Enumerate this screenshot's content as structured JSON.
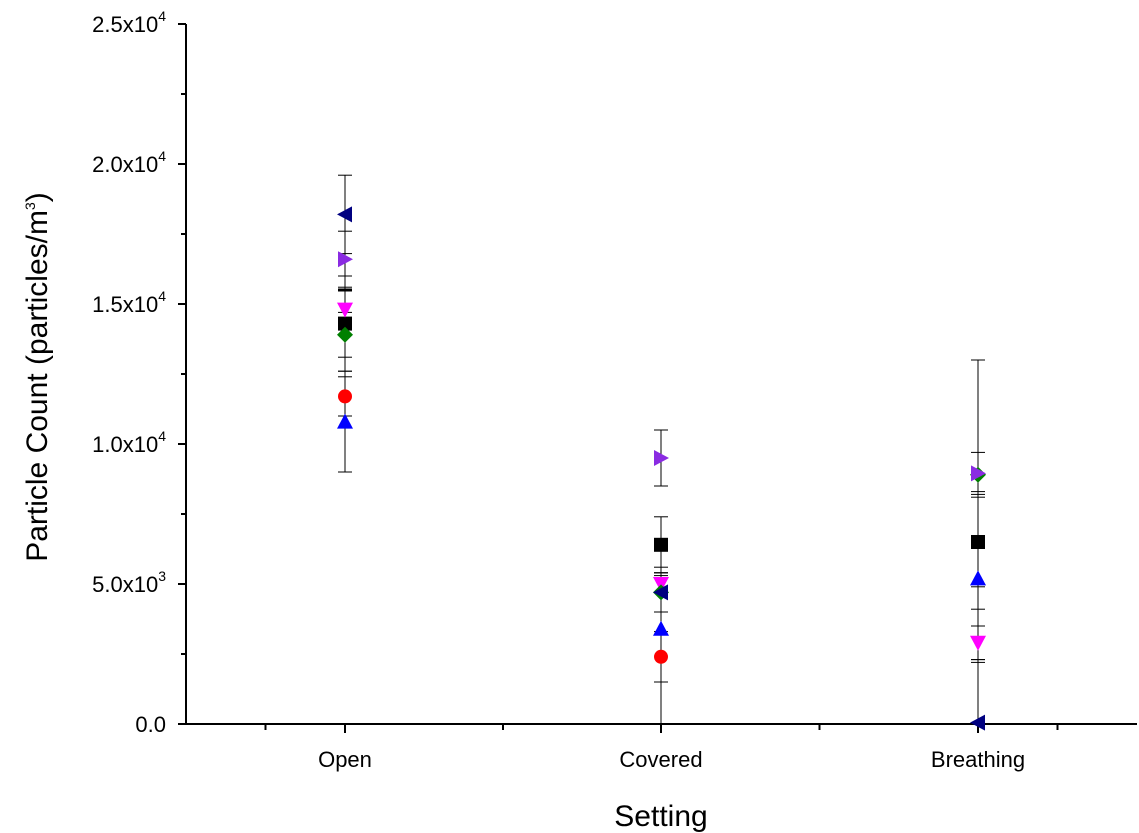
{
  "chart_data": {
    "type": "scatter",
    "xlabel": "Setting",
    "ylabel": "Particle Count (particles/m",
    "ylabel_sup": "3",
    "ylabel_close": ")",
    "categories": [
      "Open",
      "Covered",
      "Breathing"
    ],
    "ylim": [
      0,
      25000
    ],
    "y_ticks": [
      {
        "value": 0,
        "mant": "0.0",
        "exp": ""
      },
      {
        "value": 5000,
        "mant": "5.0x10",
        "exp": "3"
      },
      {
        "value": 10000,
        "mant": "1.0x10",
        "exp": "4"
      },
      {
        "value": 15000,
        "mant": "1.5x10",
        "exp": "4"
      },
      {
        "value": 20000,
        "mant": "2.0x10",
        "exp": "4"
      },
      {
        "value": 25000,
        "mant": "2.5x10",
        "exp": "4"
      }
    ],
    "grid": false,
    "series": [
      {
        "marker": "square",
        "color": "#000000",
        "points": [
          {
            "cat": 0,
            "y": 14300,
            "err_low": 12600,
            "err_high": 16000
          },
          {
            "cat": 1,
            "y": 6400,
            "err_low": 5400,
            "err_high": 7400
          },
          {
            "cat": 2,
            "y": 6500,
            "err_low": 4100,
            "err_high": 8300
          }
        ]
      },
      {
        "marker": "circle",
        "color": "#ff0000",
        "points": [
          {
            "cat": 0,
            "y": 11700,
            "err_low": 11000,
            "err_high": 12400
          },
          {
            "cat": 1,
            "y": 2400,
            "err_low": 1500,
            "err_high": 3300
          }
        ]
      },
      {
        "marker": "triangle-up",
        "color": "#0000ff",
        "points": [
          {
            "cat": 0,
            "y": 10800,
            "err_low": 9000,
            "err_high": 12600
          },
          {
            "cat": 1,
            "y": 3400,
            "err_low": 0,
            "err_high": 5600
          },
          {
            "cat": 2,
            "y": 5200,
            "err_low": 2200,
            "err_high": 8200
          }
        ]
      },
      {
        "marker": "triangle-down",
        "color": "#ff00ff",
        "points": [
          {
            "cat": 0,
            "y": 14800,
            "err_low": 14100,
            "err_high": 15500
          },
          {
            "cat": 1,
            "y": 5000,
            "err_low": 4700,
            "err_high": 5300
          },
          {
            "cat": 2,
            "y": 2900,
            "err_low": 2300,
            "err_high": 3500
          }
        ]
      },
      {
        "marker": "diamond",
        "color": "#008000",
        "points": [
          {
            "cat": 0,
            "y": 13900,
            "err_low": 13100,
            "err_high": 14700
          },
          {
            "cat": 1,
            "y": 4700,
            "err_low": 4000,
            "err_high": 5400
          },
          {
            "cat": 2,
            "y": 8900,
            "err_low": 8100,
            "err_high": 9700
          }
        ]
      },
      {
        "marker": "triangle-left",
        "color": "#000080",
        "points": [
          {
            "cat": 0,
            "y": 18200,
            "err_low": 16800,
            "err_high": 19600
          },
          {
            "cat": 1,
            "y": 4700,
            "err_low": 4000,
            "err_high": 5400
          },
          {
            "cat": 2,
            "y": 50,
            "err_low": 0,
            "err_high": 2300
          }
        ]
      },
      {
        "marker": "triangle-right",
        "color": "#8a2be2",
        "points": [
          {
            "cat": 0,
            "y": 16600,
            "err_low": 15600,
            "err_high": 17600
          },
          {
            "cat": 1,
            "y": 9500,
            "err_low": 8500,
            "err_high": 10500
          },
          {
            "cat": 2,
            "y": 8950,
            "err_low": 4900,
            "err_high": 13000
          }
        ]
      },
      {
        "marker": "dash",
        "color": "#000000",
        "points": [
          {
            "cat": 0,
            "y": 15500,
            "err_low": 15500,
            "err_high": 15500
          }
        ]
      }
    ]
  }
}
